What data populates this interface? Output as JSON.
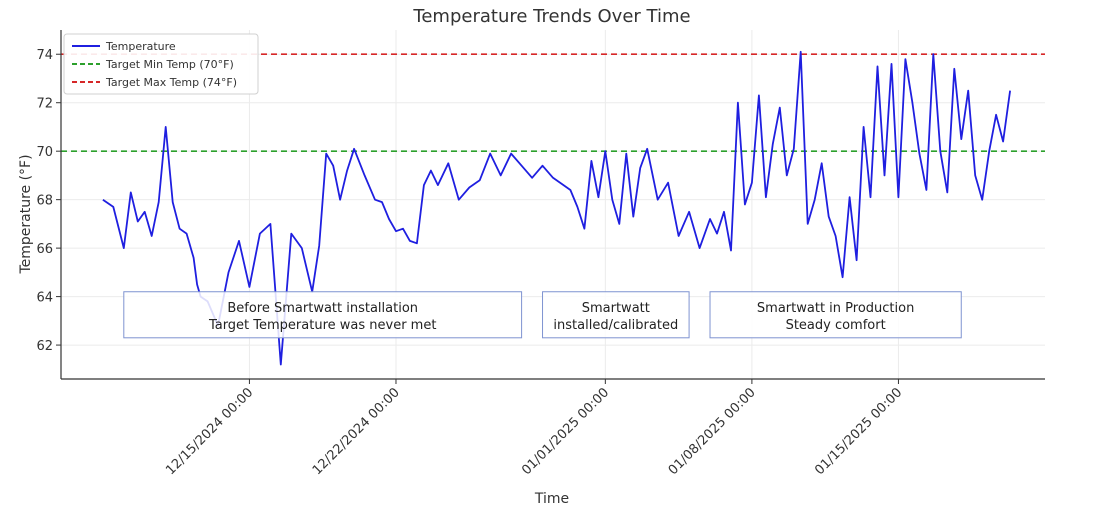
{
  "chart_data": {
    "type": "line",
    "title": "Temperature Trends Over Time",
    "xlabel": "Time",
    "ylabel": "Temperature (°F)",
    "xlim": [
      "2024-12-06",
      "2025-01-22"
    ],
    "ylim": [
      60.6,
      75.0
    ],
    "x_ticks": [
      "12/15/2024 00:00",
      "12/22/2024 00:00",
      "01/01/2025 00:00",
      "01/08/2025 00:00",
      "01/15/2025 00:00"
    ],
    "x_tick_dates": [
      "2024-12-15",
      "2024-12-22",
      "2025-01-01",
      "2025-01-08",
      "2025-01-15"
    ],
    "y_ticks": [
      62,
      64,
      66,
      68,
      70,
      72,
      74
    ],
    "grid": true,
    "legend_position": "top-left",
    "series": [
      {
        "name": "Temperature",
        "color": "#1f1fe0",
        "x": [
          "2024-12-08",
          "2024-12-08 12:00",
          "2024-12-09",
          "2024-12-09 08:00",
          "2024-12-09 16:00",
          "2024-12-10",
          "2024-12-10 08:00",
          "2024-12-10 16:00",
          "2024-12-11",
          "2024-12-11 08:00",
          "2024-12-11 16:00",
          "2024-12-12",
          "2024-12-12 08:00",
          "2024-12-12 12:00",
          "2024-12-12 16:00",
          "2024-12-13",
          "2024-12-13 12:00",
          "2024-12-14",
          "2024-12-14 12:00",
          "2024-12-15",
          "2024-12-15 12:00",
          "2024-12-16",
          "2024-12-16 12:00",
          "2024-12-17",
          "2024-12-17 12:00",
          "2024-12-18",
          "2024-12-18 08:00",
          "2024-12-18 16:00",
          "2024-12-19",
          "2024-12-19 08:00",
          "2024-12-19 16:00",
          "2024-12-20",
          "2024-12-20 12:00",
          "2024-12-21",
          "2024-12-21 08:00",
          "2024-12-21 16:00",
          "2024-12-22",
          "2024-12-22 08:00",
          "2024-12-22 16:00",
          "2024-12-23",
          "2024-12-23 08:00",
          "2024-12-23 16:00",
          "2024-12-24",
          "2024-12-24 12:00",
          "2024-12-25",
          "2024-12-25 12:00",
          "2024-12-26",
          "2024-12-26 12:00",
          "2024-12-27",
          "2024-12-27 12:00",
          "2024-12-28",
          "2024-12-28 12:00",
          "2024-12-29",
          "2024-12-29 12:00",
          "2024-12-30",
          "2024-12-30 08:00",
          "2024-12-30 16:00",
          "2024-12-31",
          "2024-12-31 08:00",
          "2024-12-31 16:00",
          "2025-01-01",
          "2025-01-01 08:00",
          "2025-01-01 16:00",
          "2025-01-02",
          "2025-01-02 08:00",
          "2025-01-02 16:00",
          "2025-01-03",
          "2025-01-03 12:00",
          "2025-01-04",
          "2025-01-04 12:00",
          "2025-01-05",
          "2025-01-05 12:00",
          "2025-01-06",
          "2025-01-06 08:00",
          "2025-01-06 16:00",
          "2025-01-07",
          "2025-01-07 08:00",
          "2025-01-07 16:00",
          "2025-01-08",
          "2025-01-08 08:00",
          "2025-01-08 16:00",
          "2025-01-09",
          "2025-01-09 08:00",
          "2025-01-09 16:00",
          "2025-01-10",
          "2025-01-10 08:00",
          "2025-01-10 16:00",
          "2025-01-11",
          "2025-01-11 08:00",
          "2025-01-11 16:00",
          "2025-01-12",
          "2025-01-12 08:00",
          "2025-01-12 16:00",
          "2025-01-13",
          "2025-01-13 08:00",
          "2025-01-13 16:00",
          "2025-01-14",
          "2025-01-14 08:00",
          "2025-01-14 16:00",
          "2025-01-15",
          "2025-01-15 08:00",
          "2025-01-15 16:00",
          "2025-01-16",
          "2025-01-16 08:00",
          "2025-01-16 16:00",
          "2025-01-17",
          "2025-01-17 08:00",
          "2025-01-17 16:00",
          "2025-01-18",
          "2025-01-18 08:00",
          "2025-01-18 16:00",
          "2025-01-19",
          "2025-01-19 08:00",
          "2025-01-19 16:00",
          "2025-01-20",
          "2025-01-20 08:00"
        ],
        "values": [
          68.0,
          67.7,
          66.0,
          68.3,
          67.1,
          67.5,
          66.5,
          67.9,
          71.0,
          67.9,
          66.8,
          66.6,
          65.6,
          64.5,
          64.0,
          63.8,
          62.8,
          65.0,
          66.3,
          64.4,
          66.6,
          67.0,
          61.2,
          66.6,
          66.0,
          64.2,
          66.1,
          69.9,
          69.4,
          68.0,
          69.2,
          70.1,
          69.0,
          68.0,
          67.9,
          67.2,
          66.7,
          66.8,
          66.3,
          66.2,
          68.6,
          69.2,
          68.6,
          69.5,
          68.0,
          68.5,
          68.8,
          69.9,
          69.0,
          69.9,
          69.4,
          68.9,
          69.4,
          68.9,
          68.6,
          68.4,
          67.7,
          66.8,
          69.6,
          68.1,
          70.0,
          68.0,
          67.0,
          69.9,
          67.3,
          69.3,
          70.1,
          68.0,
          68.7,
          66.5,
          67.5,
          66.0,
          67.2,
          66.6,
          67.5,
          65.9,
          72.0,
          67.8,
          68.7,
          72.3,
          68.1,
          70.3,
          71.8,
          69.0,
          70.1,
          74.1,
          67.0,
          68.0,
          69.5,
          67.3,
          66.5,
          64.8,
          68.1,
          65.5,
          71.0,
          68.1,
          73.5,
          69.0,
          73.6,
          68.1,
          73.8,
          72.0,
          69.9,
          68.4,
          74.0,
          70.0,
          68.3,
          73.4,
          70.5,
          72.5,
          69.0,
          68.0,
          70.0,
          71.5,
          70.4,
          72.5
        ]
      },
      {
        "name": "Target Min Temp (70°F)",
        "color": "#2ca02c",
        "dashed": true,
        "constant": 70
      },
      {
        "name": "Target Max Temp (74°F)",
        "color": "#d62728",
        "dashed": true,
        "constant": 74
      }
    ],
    "annotations": [
      {
        "lines": [
          "Before Smartwatt installation",
          "Target Temperature was never met"
        ],
        "x_range": [
          "2024-12-09",
          "2024-12-28"
        ],
        "y_range": [
          62.3,
          64.2
        ]
      },
      {
        "lines": [
          "Smartwatt",
          "installed/calibrated"
        ],
        "x_range": [
          "2024-12-29",
          "2025-01-05"
        ],
        "y_range": [
          62.3,
          64.2
        ]
      },
      {
        "lines": [
          "Smartwatt in Production",
          "Steady comfort"
        ],
        "x_range": [
          "2025-01-06",
          "2025-01-18"
        ],
        "y_range": [
          62.3,
          64.2
        ]
      }
    ]
  }
}
